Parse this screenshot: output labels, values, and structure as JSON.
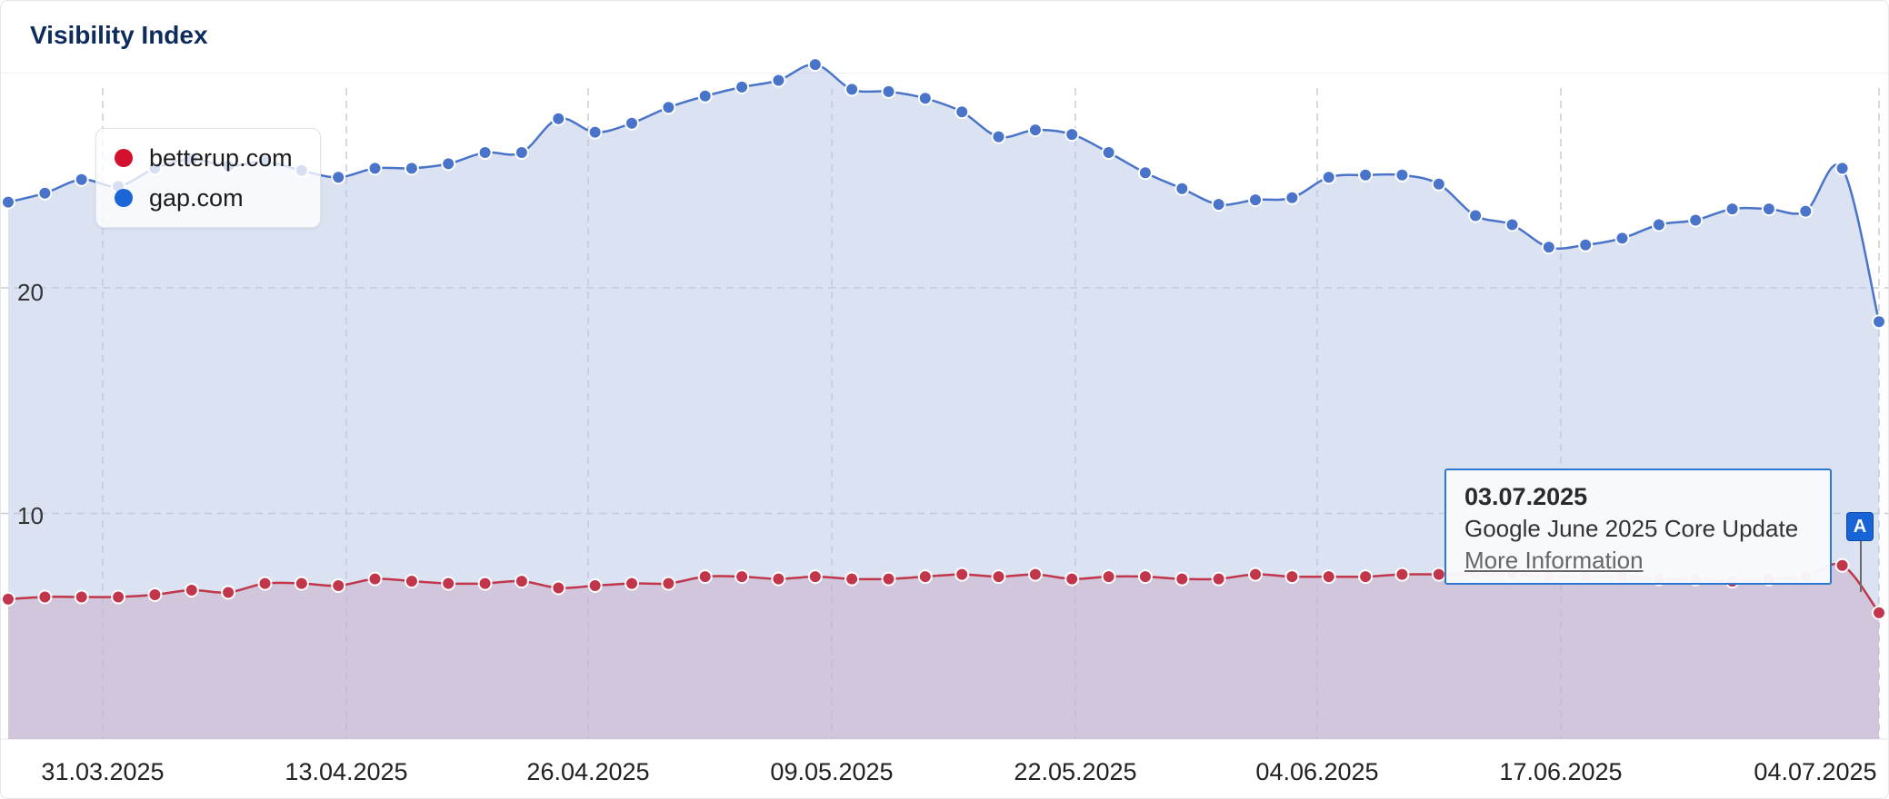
{
  "title": "Visibility Index",
  "legend": [
    {
      "label": "betterup.com",
      "color": "#d50f2e"
    },
    {
      "label": "gap.com",
      "color": "#1a66d6"
    }
  ],
  "event": {
    "date": "03.07.2025",
    "name": "Google June 2025 Core Update",
    "link": "More Information",
    "flag": "A"
  },
  "chart_data": {
    "type": "area",
    "title": "Visibility Index",
    "xlabel": "",
    "ylabel": "",
    "x_tick_labels": [
      "31.03.2025",
      "13.04.2025",
      "26.04.2025",
      "09.05.2025",
      "22.05.2025",
      "04.06.2025",
      "17.06.2025",
      "04.07.2025"
    ],
    "y_tick_labels": [
      "10",
      "20"
    ],
    "ylim": [
      0,
      29.5
    ],
    "grid": true,
    "legend_position": "top-left",
    "series": [
      {
        "name": "gap.com",
        "color": "#4a74c9",
        "values": [
          23.8,
          24.2,
          24.8,
          24.5,
          25.3,
          25.7,
          25.4,
          25.6,
          25.2,
          24.9,
          25.3,
          25.3,
          25.5,
          26.0,
          26.0,
          27.5,
          26.9,
          27.3,
          28.0,
          28.5,
          28.9,
          29.2,
          29.9,
          28.8,
          28.7,
          28.4,
          27.8,
          26.7,
          27.0,
          26.8,
          26.0,
          25.1,
          24.4,
          23.7,
          23.9,
          24.0,
          24.9,
          25.0,
          25.0,
          24.6,
          23.2,
          22.8,
          21.8,
          21.9,
          22.2,
          22.8,
          23.0,
          23.5,
          23.5,
          23.4,
          25.3,
          18.5
        ]
      },
      {
        "name": "betterup.com",
        "color": "#c1364a",
        "values": [
          6.2,
          6.3,
          6.3,
          6.3,
          6.4,
          6.6,
          6.5,
          6.9,
          6.9,
          6.8,
          7.1,
          7.0,
          6.9,
          6.9,
          7.0,
          6.7,
          6.8,
          6.9,
          6.9,
          7.2,
          7.2,
          7.1,
          7.2,
          7.1,
          7.1,
          7.2,
          7.3,
          7.2,
          7.3,
          7.1,
          7.2,
          7.2,
          7.1,
          7.1,
          7.3,
          7.2,
          7.2,
          7.2,
          7.3,
          7.3,
          7.3,
          7.3,
          7.2,
          7.2,
          7.2,
          7.1,
          7.1,
          7.0,
          7.1,
          7.2,
          7.7,
          5.6
        ]
      }
    ]
  }
}
